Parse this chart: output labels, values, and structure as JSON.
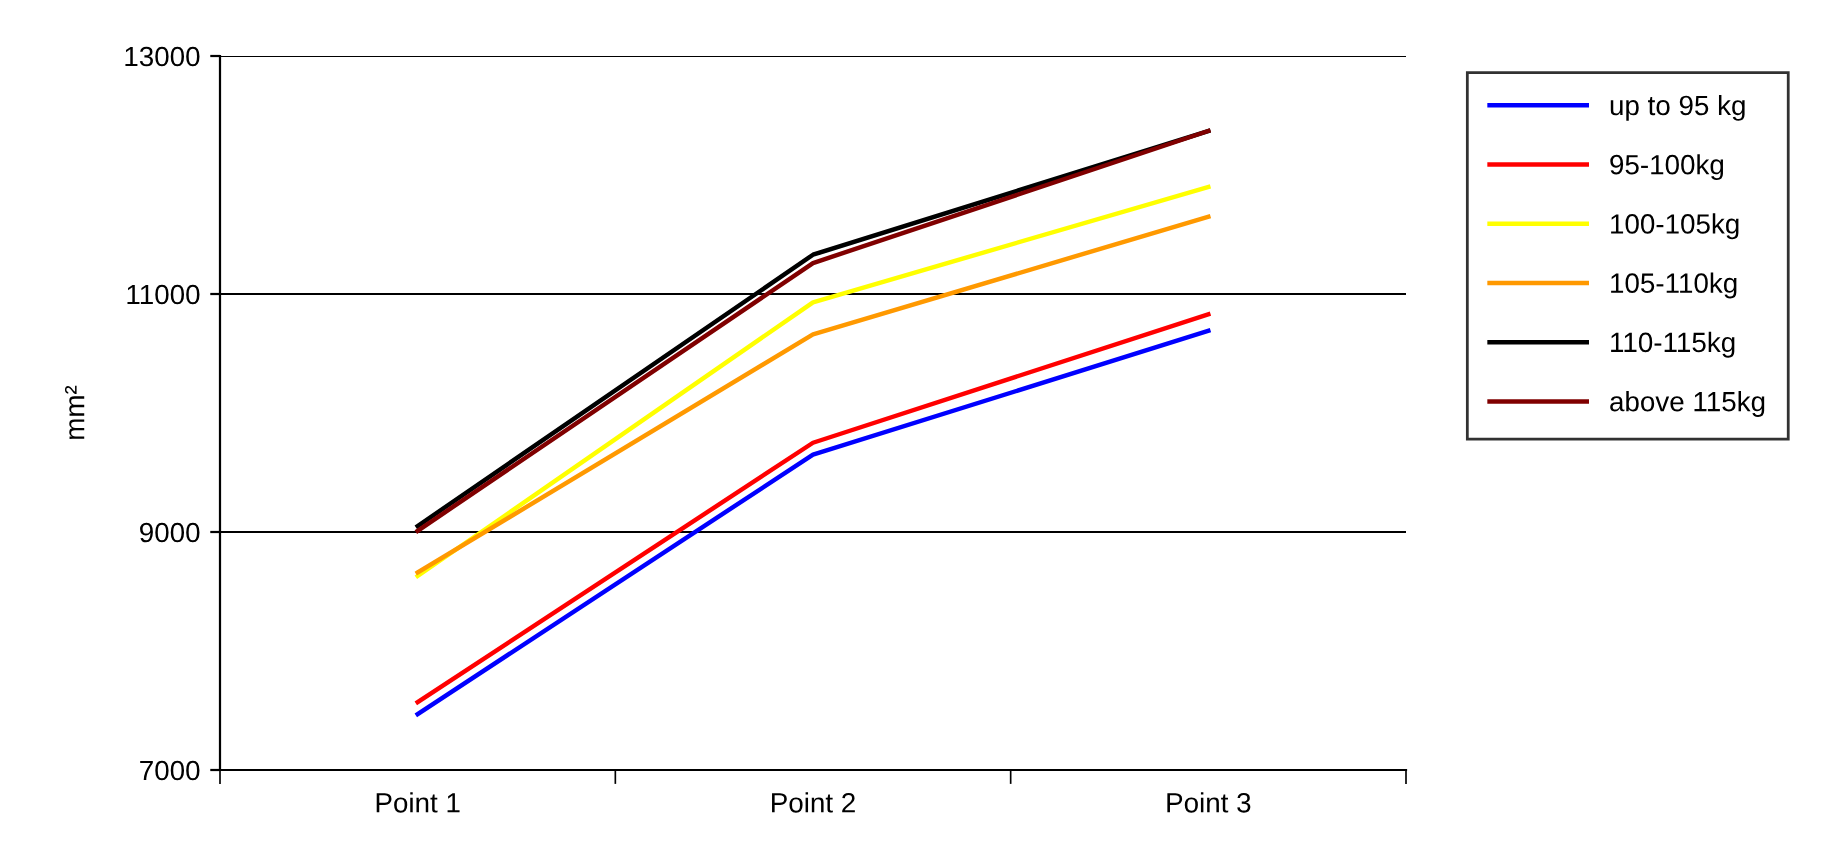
{
  "chart_data": {
    "type": "line",
    "ylabel": "mm²",
    "categories": [
      "Point 1",
      "Point 2",
      "Point 3"
    ],
    "series": [
      {
        "name": "up to 95 kg",
        "color": "#0000ff",
        "values": [
          7470,
          9650,
          10690
        ]
      },
      {
        "name": "95-100kg",
        "color": "#ff0000",
        "values": [
          7570,
          9750,
          10830
        ]
      },
      {
        "name": "100-105kg",
        "color": "#ffff00",
        "values": [
          8630,
          10930,
          11900
        ]
      },
      {
        "name": "105-110kg",
        "color": "#ff9900",
        "values": [
          8660,
          10660,
          11650
        ]
      },
      {
        "name": "110-115kg",
        "color": "#000000",
        "values": [
          9050,
          11330,
          12370
        ]
      },
      {
        "name": "above 115kg",
        "color": "#800000",
        "values": [
          9010,
          11260,
          12370
        ]
      }
    ],
    "ylim": [
      7000,
      13000
    ],
    "yticks": [
      7000,
      9000,
      11000,
      13000
    ],
    "grid": "y",
    "legend": "right",
    "marker": "none",
    "line_style": "solid"
  }
}
